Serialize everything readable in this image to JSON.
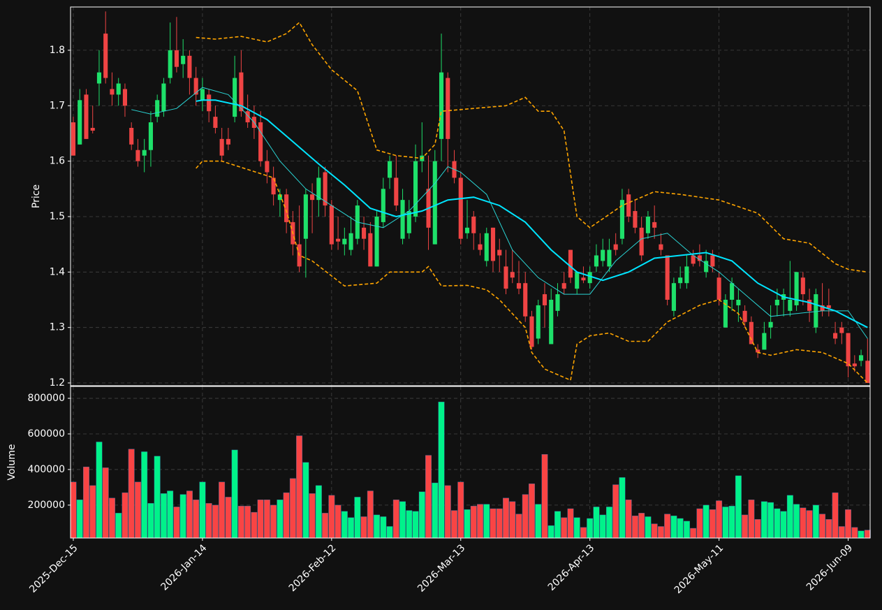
{
  "chart_data": [
    {
      "type": "candlestick",
      "ylabel": "Price",
      "ylim": [
        1.195,
        1.878
      ],
      "yticks": [
        1.2,
        1.3,
        1.4,
        1.5,
        1.6,
        1.7,
        1.8
      ],
      "xlim": [
        -0.43,
        123.4
      ],
      "grid": true,
      "up_color": "#1ee06a",
      "down_color": "#ef4444",
      "open": [
        1.67,
        1.63,
        1.72,
        1.66,
        1.74,
        1.83,
        1.73,
        1.72,
        1.73,
        1.66,
        1.62,
        1.61,
        1.62,
        1.68,
        1.69,
        1.75,
        1.8,
        1.775,
        1.79,
        1.75,
        1.71,
        1.72,
        1.68,
        1.64,
        1.64,
        1.68,
        1.76,
        1.69,
        1.68,
        1.67,
        1.6,
        1.57,
        1.53,
        1.54,
        1.49,
        1.45,
        1.46,
        1.54,
        1.53,
        1.58,
        1.52,
        1.46,
        1.45,
        1.44,
        1.46,
        1.48,
        1.47,
        1.41,
        1.49,
        1.57,
        1.57,
        1.46,
        1.47,
        1.5,
        1.6,
        1.55,
        1.45,
        1.64,
        1.75,
        1.6,
        1.57,
        1.47,
        1.5,
        1.45,
        1.42,
        1.48,
        1.44,
        1.41,
        1.4,
        1.38,
        1.38,
        1.32,
        1.28,
        1.36,
        1.27,
        1.33,
        1.38,
        1.44,
        1.37,
        1.39,
        1.38,
        1.41,
        1.42,
        1.41,
        1.45,
        1.46,
        1.54,
        1.51,
        1.48,
        1.47,
        1.49,
        1.45,
        1.43,
        1.33,
        1.38,
        1.38,
        1.43,
        1.43,
        1.4,
        1.43,
        1.39,
        1.3,
        1.35,
        1.34,
        1.33,
        1.31,
        1.26,
        1.26,
        1.3,
        1.34,
        1.35,
        1.33,
        1.34,
        1.39,
        1.35,
        1.3,
        1.34,
        1.34,
        1.29,
        1.3,
        1.29,
        1.235,
        1.24,
        1.24
      ],
      "high": [
        1.68,
        1.73,
        1.73,
        1.7,
        1.8,
        1.87,
        1.76,
        1.75,
        1.74,
        1.67,
        1.64,
        1.64,
        1.69,
        1.72,
        1.75,
        1.85,
        1.86,
        1.82,
        1.8,
        1.77,
        1.75,
        1.73,
        1.7,
        1.66,
        1.66,
        1.79,
        1.8,
        1.72,
        1.7,
        1.69,
        1.62,
        1.59,
        1.55,
        1.55,
        1.51,
        1.52,
        1.55,
        1.56,
        1.59,
        1.59,
        1.53,
        1.5,
        1.48,
        1.5,
        1.53,
        1.5,
        1.49,
        1.51,
        1.57,
        1.61,
        1.61,
        1.55,
        1.53,
        1.63,
        1.67,
        1.61,
        1.62,
        1.83,
        1.76,
        1.62,
        1.58,
        1.53,
        1.51,
        1.47,
        1.48,
        1.48,
        1.46,
        1.44,
        1.44,
        1.42,
        1.4,
        1.33,
        1.35,
        1.38,
        1.37,
        1.38,
        1.4,
        1.44,
        1.4,
        1.41,
        1.41,
        1.45,
        1.46,
        1.46,
        1.47,
        1.55,
        1.55,
        1.53,
        1.5,
        1.51,
        1.52,
        1.47,
        1.43,
        1.39,
        1.41,
        1.43,
        1.44,
        1.45,
        1.44,
        1.44,
        1.4,
        1.36,
        1.39,
        1.37,
        1.34,
        1.32,
        1.27,
        1.31,
        1.34,
        1.37,
        1.37,
        1.42,
        1.4,
        1.4,
        1.37,
        1.37,
        1.38,
        1.37,
        1.31,
        1.31,
        1.29,
        1.25,
        1.26,
        1.28
      ],
      "low": [
        1.61,
        1.63,
        1.64,
        1.65,
        1.7,
        1.74,
        1.7,
        1.7,
        1.68,
        1.62,
        1.59,
        1.58,
        1.59,
        1.67,
        1.68,
        1.74,
        1.76,
        1.75,
        1.72,
        1.7,
        1.69,
        1.67,
        1.65,
        1.6,
        1.62,
        1.67,
        1.68,
        1.66,
        1.64,
        1.59,
        1.56,
        1.52,
        1.5,
        1.47,
        1.43,
        1.4,
        1.39,
        1.47,
        1.5,
        1.5,
        1.44,
        1.44,
        1.43,
        1.43,
        1.45,
        1.44,
        1.41,
        1.41,
        1.48,
        1.55,
        1.51,
        1.45,
        1.46,
        1.49,
        1.58,
        1.44,
        1.45,
        1.6,
        1.58,
        1.56,
        1.45,
        1.46,
        1.44,
        1.43,
        1.41,
        1.4,
        1.4,
        1.36,
        1.38,
        1.36,
        1.31,
        1.26,
        1.27,
        1.3,
        1.27,
        1.32,
        1.36,
        1.38,
        1.36,
        1.38,
        1.37,
        1.4,
        1.41,
        1.4,
        1.43,
        1.45,
        1.49,
        1.47,
        1.42,
        1.46,
        1.46,
        1.43,
        1.34,
        1.32,
        1.37,
        1.37,
        1.41,
        1.41,
        1.39,
        1.4,
        1.34,
        1.3,
        1.33,
        1.31,
        1.3,
        1.27,
        1.245,
        1.26,
        1.28,
        1.32,
        1.32,
        1.32,
        1.33,
        1.34,
        1.31,
        1.29,
        1.32,
        1.32,
        1.27,
        1.27,
        1.21,
        1.22,
        1.23,
        1.2
      ],
      "close": [
        1.61,
        1.71,
        1.64,
        1.655,
        1.76,
        1.75,
        1.72,
        1.74,
        1.7,
        1.63,
        1.6,
        1.62,
        1.67,
        1.71,
        1.74,
        1.8,
        1.77,
        1.79,
        1.75,
        1.72,
        1.73,
        1.69,
        1.66,
        1.61,
        1.63,
        1.75,
        1.69,
        1.67,
        1.66,
        1.6,
        1.58,
        1.54,
        1.54,
        1.49,
        1.45,
        1.41,
        1.54,
        1.53,
        1.57,
        1.52,
        1.45,
        1.455,
        1.46,
        1.47,
        1.52,
        1.46,
        1.41,
        1.5,
        1.55,
        1.6,
        1.52,
        1.53,
        1.51,
        1.6,
        1.61,
        1.48,
        1.6,
        1.76,
        1.64,
        1.57,
        1.46,
        1.48,
        1.47,
        1.44,
        1.47,
        1.42,
        1.43,
        1.37,
        1.39,
        1.37,
        1.32,
        1.265,
        1.34,
        1.34,
        1.35,
        1.36,
        1.37,
        1.39,
        1.4,
        1.385,
        1.4,
        1.43,
        1.44,
        1.44,
        1.44,
        1.53,
        1.5,
        1.48,
        1.43,
        1.5,
        1.48,
        1.44,
        1.35,
        1.38,
        1.39,
        1.41,
        1.415,
        1.42,
        1.42,
        1.41,
        1.35,
        1.35,
        1.38,
        1.35,
        1.31,
        1.27,
        1.255,
        1.29,
        1.31,
        1.35,
        1.36,
        1.35,
        1.4,
        1.36,
        1.33,
        1.36,
        1.33,
        1.335,
        1.28,
        1.29,
        1.23,
        1.23,
        1.25,
        1.2
      ],
      "lines": [
        {
          "color": "#2ad4d4",
          "width": 1,
          "dashed": false,
          "x": [
            9,
            12,
            16,
            20,
            24,
            28,
            32,
            36,
            40,
            44,
            48,
            52,
            56,
            58,
            60,
            64,
            68,
            72,
            76,
            80,
            84,
            88,
            92,
            96,
            100,
            104,
            108,
            112,
            116,
            120,
            123
          ],
          "values": [
            1.693,
            1.685,
            1.695,
            1.733,
            1.72,
            1.67,
            1.6,
            1.55,
            1.52,
            1.49,
            1.48,
            1.51,
            1.56,
            1.59,
            1.58,
            1.54,
            1.44,
            1.39,
            1.36,
            1.36,
            1.42,
            1.46,
            1.47,
            1.43,
            1.4,
            1.36,
            1.32,
            1.325,
            1.33,
            1.33,
            1.28
          ]
        },
        {
          "color": "#00e5ff",
          "width": 2,
          "dashed": false,
          "x": [
            19,
            20,
            22,
            26,
            30,
            34,
            38,
            42,
            46,
            50,
            54,
            58,
            62,
            66,
            70,
            74,
            78,
            82,
            86,
            90,
            94,
            98,
            102,
            106,
            110,
            114,
            118,
            123
          ],
          "values": [
            1.708,
            1.71,
            1.71,
            1.7,
            1.675,
            1.635,
            1.595,
            1.557,
            1.515,
            1.5,
            1.51,
            1.53,
            1.535,
            1.52,
            1.49,
            1.44,
            1.4,
            1.385,
            1.4,
            1.425,
            1.43,
            1.435,
            1.42,
            1.38,
            1.355,
            1.345,
            1.33,
            1.3
          ]
        },
        {
          "color": "#ffa500",
          "width": 1.6,
          "dashed": true,
          "x": [
            19,
            22,
            26,
            30,
            33,
            35,
            37,
            40,
            44,
            47,
            50,
            54,
            56,
            57,
            62,
            67,
            70,
            72,
            74,
            76,
            78,
            80,
            85,
            90,
            94,
            100,
            106,
            110,
            114,
            118,
            120,
            123
          ],
          "values": [
            1.823,
            1.82,
            1.825,
            1.815,
            1.83,
            1.85,
            1.81,
            1.765,
            1.727,
            1.62,
            1.61,
            1.605,
            1.63,
            1.69,
            1.695,
            1.7,
            1.715,
            1.69,
            1.69,
            1.655,
            1.5,
            1.48,
            1.52,
            1.545,
            1.54,
            1.53,
            1.506,
            1.46,
            1.452,
            1.415,
            1.405,
            1.4
          ]
        },
        {
          "color": "#ffa500",
          "width": 1.6,
          "dashed": true,
          "x": [
            19,
            20,
            23,
            27,
            31,
            33,
            35,
            37,
            42,
            47,
            49,
            54,
            55,
            57,
            61,
            64,
            66,
            70,
            71,
            73,
            77,
            78,
            80,
            83,
            86,
            89,
            92,
            97,
            100,
            103,
            106,
            108,
            112,
            116,
            120,
            123
          ],
          "values": [
            1.587,
            1.6,
            1.6,
            1.585,
            1.57,
            1.51,
            1.43,
            1.42,
            1.375,
            1.38,
            1.4,
            1.4,
            1.41,
            1.375,
            1.376,
            1.368,
            1.35,
            1.3,
            1.255,
            1.225,
            1.205,
            1.27,
            1.285,
            1.29,
            1.275,
            1.275,
            1.31,
            1.34,
            1.35,
            1.325,
            1.255,
            1.25,
            1.26,
            1.255,
            1.235,
            1.2
          ]
        }
      ]
    },
    {
      "type": "bar",
      "ylabel": "Volume",
      "ylim": [
        15000,
        867000
      ],
      "yticks": [
        200000,
        400000,
        600000,
        800000
      ],
      "xlim": [
        -0.43,
        123.4
      ],
      "grid": true,
      "up_color": "#00f28a",
      "down_color": "#f94444",
      "xticks": [
        {
          "value": 0,
          "label": "2025-Dec-15"
        },
        {
          "value": 20,
          "label": "2026-Jan-14"
        },
        {
          "value": 40,
          "label": "2026-Feb-12"
        },
        {
          "value": 60,
          "label": "2026-Mar-13"
        },
        {
          "value": 80,
          "label": "2026-Apr-13"
        },
        {
          "value": 100,
          "label": "2026-May-11"
        },
        {
          "value": 120,
          "label": "2026-Jun-09"
        }
      ],
      "values": [
        330000,
        230000,
        415000,
        310000,
        555000,
        410000,
        240000,
        155000,
        270000,
        515000,
        330000,
        500000,
        210000,
        475000,
        265000,
        280000,
        190000,
        260000,
        280000,
        230000,
        330000,
        210000,
        200000,
        330000,
        245000,
        510000,
        195000,
        195000,
        160000,
        230000,
        230000,
        200000,
        230000,
        270000,
        350000,
        590000,
        440000,
        265000,
        310000,
        155000,
        255000,
        200000,
        165000,
        130000,
        245000,
        135000,
        280000,
        145000,
        135000,
        80000,
        230000,
        220000,
        170000,
        165000,
        275000,
        480000,
        325000,
        780000,
        310000,
        170000,
        330000,
        175000,
        195000,
        205000,
        205000,
        180000,
        180000,
        240000,
        220000,
        150000,
        260000,
        320000,
        205000,
        485000,
        85000,
        165000,
        130000,
        180000,
        130000,
        75000,
        125000,
        190000,
        145000,
        190000,
        315000,
        355000,
        230000,
        140000,
        155000,
        135000,
        95000,
        80000,
        150000,
        140000,
        125000,
        110000,
        70000,
        180000,
        200000,
        175000,
        225000,
        190000,
        195000,
        365000,
        145000,
        230000,
        120000,
        220000,
        215000,
        180000,
        165000,
        255000,
        205000,
        185000,
        170000,
        200000,
        150000,
        120000,
        270000,
        80000,
        175000,
        75000,
        55000,
        60000
      ]
    }
  ]
}
